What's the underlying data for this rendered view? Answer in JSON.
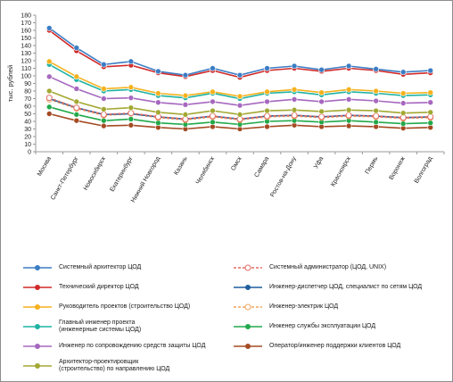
{
  "chart_data": {
    "type": "line",
    "ylabel": "тыс. рублей",
    "ylim": [
      0,
      180
    ],
    "yticks": [
      0,
      10,
      20,
      30,
      40,
      50,
      60,
      70,
      80,
      90,
      100,
      110,
      120,
      130,
      140,
      150,
      160,
      170,
      180
    ],
    "grid": false,
    "legend_position": "bottom",
    "categories": [
      "Москва",
      "Санкт-Петербург",
      "Новосибирск",
      "Екатеринбург",
      "Нижний Новгород",
      "Казань",
      "Челябинск",
      "Омск",
      "Самара",
      "Ростов-на-Дону",
      "Уфа",
      "Красноярск",
      "Пермь",
      "Воронеж",
      "Волгоград"
    ],
    "series": [
      {
        "name": "Системный архитектор ЦОД",
        "color": "#3b7dc4",
        "values": [
          163,
          137,
          115,
          119,
          106,
          101,
          110,
          101,
          110,
          113,
          108,
          113,
          109,
          105,
          107
        ],
        "dashed": false
      },
      {
        "name": "Технический директор ЦОД",
        "color": "#d02a2a",
        "values": [
          160,
          133,
          112,
          114,
          104,
          99,
          107,
          98,
          107,
          110,
          106,
          110,
          107,
          102,
          104
        ],
        "dashed": false
      },
      {
        "name": "Руководитель проектов (строительство ЦОД)",
        "color": "#f5b21e",
        "values": [
          119,
          99,
          83,
          85,
          77,
          74,
          79,
          73,
          79,
          82,
          78,
          82,
          80,
          77,
          78
        ],
        "dashed": false
      },
      {
        "name": "Главный инженер проекта\n(инженерные системы ЦОД)",
        "color": "#1fb3a3",
        "values": [
          115,
          95,
          80,
          82,
          74,
          71,
          77,
          70,
          77,
          79,
          75,
          79,
          77,
          74,
          75
        ],
        "dashed": false
      },
      {
        "name": "Инженер по сопровождению средств защиты ЦОД",
        "color": "#a668bf",
        "values": [
          99,
          83,
          70,
          71,
          65,
          62,
          66,
          61,
          66,
          69,
          66,
          69,
          67,
          64,
          65
        ],
        "dashed": false
      },
      {
        "name": "Архитектор-проектировщик\n(строительство) по направлению ЦОД",
        "color": "#a3a832",
        "values": [
          80,
          66,
          56,
          58,
          52,
          49,
          54,
          49,
          54,
          55,
          53,
          55,
          54,
          51,
          52
        ],
        "dashed": false
      },
      {
        "name": "Системный администратор (ЦОД, UNIX)",
        "color": "#e46b64",
        "values": [
          71,
          58,
          49,
          51,
          46,
          43,
          47,
          43,
          47,
          48,
          46,
          48,
          47,
          45,
          46
        ],
        "dashed": true
      },
      {
        "name": "Инженер-диспетчер ЦОД, специалист по сетям ЦОД",
        "color": "#1f5f9e",
        "values": [
          70,
          58,
          49,
          50,
          46,
          43,
          47,
          43,
          47,
          48,
          46,
          48,
          47,
          45,
          46
        ],
        "dashed": false
      },
      {
        "name": "Инженер-электрик ЦОД",
        "color": "#f2a35c",
        "values": [
          69,
          57,
          48,
          50,
          45,
          42,
          46,
          42,
          46,
          47,
          45,
          47,
          46,
          44,
          45
        ],
        "dashed": true
      },
      {
        "name": "Инженер службы эксплуатации ЦОД",
        "color": "#22a94b",
        "values": [
          59,
          49,
          41,
          43,
          38,
          36,
          39,
          36,
          40,
          41,
          39,
          41,
          39,
          37,
          38
        ],
        "dashed": false
      },
      {
        "name": "Оператор/инженер поддержки клиентов ЦОД",
        "color": "#a54a23",
        "values": [
          50,
          41,
          34,
          35,
          32,
          30,
          33,
          30,
          33,
          35,
          33,
          34,
          33,
          31,
          32
        ],
        "dashed": false
      }
    ],
    "legend_order": [
      0,
      6,
      1,
      7,
      2,
      8,
      3,
      9,
      4,
      10,
      5
    ]
  }
}
